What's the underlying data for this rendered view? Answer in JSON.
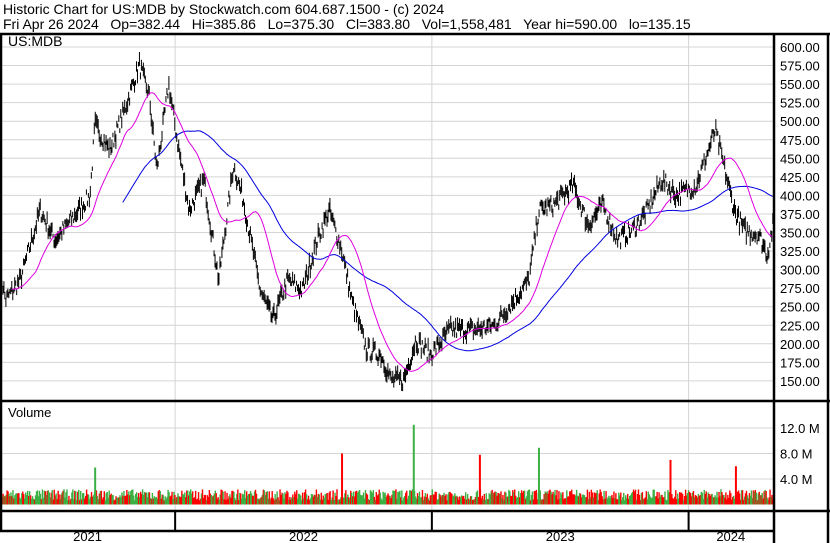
{
  "header": {
    "title": "Historic Chart for US:MDB by Stockwatch.com 604.687.1500 - (c) 2024",
    "quote": "Fri Apr 26 2024   Op=382.44   Hi=385.86   Lo=375.30   Cl=383.80   Vol=1,558,481   Year hi=590.00   lo=135.15"
  },
  "chart_data": [
    {
      "type": "line",
      "title": "US:MDB",
      "ylabel": "",
      "ylim": [
        130,
        610
      ],
      "yticks": [
        "600.00",
        "575.00",
        "550.00",
        "525.00",
        "500.00",
        "475.00",
        "450.00",
        "425.00",
        "400.00",
        "375.00",
        "350.00",
        "325.00",
        "300.00",
        "275.00",
        "250.00",
        "225.00",
        "200.00",
        "175.00",
        "150.00"
      ],
      "xlim": [
        "2021-04-27",
        "2024-04-30"
      ],
      "xticks": [
        "2021",
        "2022",
        "2023",
        "2024"
      ],
      "grid": true,
      "colors": {
        "price": "#000000",
        "ma_short": "#e000e0",
        "ma_long": "#0000e0"
      },
      "price_path": [
        [
          "2021-04-27",
          300
        ],
        [
          "2021-05-05",
          259
        ],
        [
          "2021-05-26",
          286
        ],
        [
          "2021-06-23",
          380
        ],
        [
          "2021-07-14",
          340
        ],
        [
          "2021-08-12",
          374
        ],
        [
          "2021-09-02",
          400
        ],
        [
          "2021-09-09",
          495
        ],
        [
          "2021-09-30",
          461
        ],
        [
          "2021-10-21",
          515
        ],
        [
          "2021-11-11",
          576
        ],
        [
          "2021-11-25",
          535
        ],
        [
          "2021-12-06",
          434
        ],
        [
          "2021-12-23",
          549
        ],
        [
          "2022-01-04",
          475
        ],
        [
          "2022-01-21",
          380
        ],
        [
          "2022-02-11",
          421
        ],
        [
          "2022-03-04",
          286
        ],
        [
          "2022-03-25",
          441
        ],
        [
          "2022-04-08",
          394
        ],
        [
          "2022-05-02",
          272
        ],
        [
          "2022-05-20",
          232
        ],
        [
          "2022-06-10",
          286
        ],
        [
          "2022-07-01",
          272
        ],
        [
          "2022-07-22",
          340
        ],
        [
          "2022-08-08",
          380
        ],
        [
          "2022-08-26",
          326
        ],
        [
          "2022-09-09",
          259
        ],
        [
          "2022-09-30",
          192
        ],
        [
          "2022-10-21",
          185
        ],
        [
          "2022-11-04",
          151
        ],
        [
          "2022-11-22",
          151
        ],
        [
          "2022-12-09",
          205
        ],
        [
          "2022-12-30",
          185
        ],
        [
          "2023-01-27",
          219
        ],
        [
          "2023-03-03",
          219
        ],
        [
          "2023-03-31",
          225
        ],
        [
          "2023-04-28",
          259
        ],
        [
          "2023-05-19",
          286
        ],
        [
          "2023-06-02",
          380
        ],
        [
          "2023-06-23",
          387
        ],
        [
          "2023-07-21",
          414
        ],
        [
          "2023-08-11",
          360
        ],
        [
          "2023-09-01",
          387
        ],
        [
          "2023-09-22",
          340
        ],
        [
          "2023-10-13",
          353
        ],
        [
          "2023-11-03",
          380
        ],
        [
          "2023-11-24",
          421
        ],
        [
          "2023-12-15",
          400
        ],
        [
          "2024-01-12",
          414
        ],
        [
          "2024-02-08",
          488
        ],
        [
          "2024-02-20",
          441
        ],
        [
          "2024-03-06",
          380
        ],
        [
          "2024-03-20",
          353
        ],
        [
          "2024-04-10",
          347
        ],
        [
          "2024-04-22",
          320
        ],
        [
          "2024-04-30",
          360
        ]
      ]
    },
    {
      "type": "bar",
      "title": "Volume",
      "ylim": [
        0,
        16.5
      ],
      "yticks": [
        "12.0 M",
        "8.0 M",
        "4.0 M"
      ],
      "colors": {
        "up": "#3cb043",
        "down": "#ff0000"
      },
      "typical_volume_m": 1.6,
      "spikes": [
        [
          "2021-09-09",
          5.8,
          "up"
        ],
        [
          "2022-08-26",
          8.0,
          "down"
        ],
        [
          "2022-12-06",
          12.5,
          "up"
        ],
        [
          "2023-03-10",
          7.8,
          "down"
        ],
        [
          "2023-06-02",
          8.9,
          "up"
        ],
        [
          "2023-12-06",
          7.0,
          "down"
        ],
        [
          "2024-03-08",
          6.0,
          "down"
        ]
      ]
    }
  ]
}
